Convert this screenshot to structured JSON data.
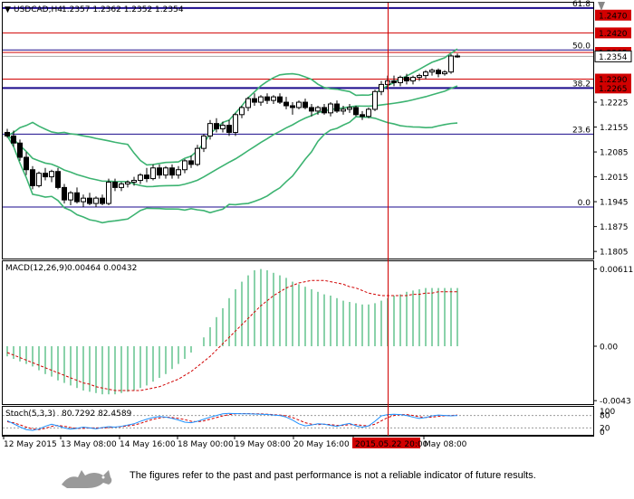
{
  "header": {
    "symbol_label": "USDCAD,H4",
    "ohlc": "1.2357 1.2362 1.2352 1.2354"
  },
  "colors": {
    "fibo_line": "#1a0a8c",
    "level_red": "#d10000",
    "bands": "#3cb371",
    "macd_hist": "#3cb371",
    "macd_signal": "#d10000",
    "stoch_main": "#1e90ff",
    "stoch_signal": "#d10000",
    "candle": "#000000"
  },
  "chart_data": [
    {
      "type": "candlestick",
      "title": "USDCAD,H4",
      "ylim": [
        1.1785,
        1.2505
      ],
      "price_ticks": [
        "1.2470",
        "1.2420",
        "1.2365",
        "1.2354",
        "1.2290",
        "1.2265",
        "1.2225",
        "1.2155",
        "1.2085",
        "1.2015",
        "1.1945",
        "1.1875",
        "1.1805"
      ],
      "highlighted_ticks": [
        "1.2470",
        "1.2420",
        "1.2365",
        "1.2290",
        "1.2265"
      ],
      "fibo_levels": [
        {
          "label": "61.8",
          "price": 1.249
        },
        {
          "label": "50.0",
          "price": 1.2372
        },
        {
          "label": "38.2",
          "price": 1.2265
        },
        {
          "label": "23.6",
          "price": 1.2135
        },
        {
          "label": "0.0",
          "price": 1.193
        }
      ],
      "horizontal_levels": [
        1.242,
        1.2365,
        1.229
      ],
      "current_price": 1.2354,
      "vertical_marker_label": "2015.05.22 20:00",
      "x_ticks": [
        "12 May 2015",
        "13 May 08:00",
        "14 May 16:00",
        "18 May 00:00",
        "19 May 08:00",
        "20 May 16:00",
        "2015.05.22 20:00",
        "May 08:00"
      ],
      "candles": [
        [
          1.214,
          1.215,
          1.2125,
          1.213
        ],
        [
          1.213,
          1.2145,
          1.21,
          1.211
        ],
        [
          1.211,
          1.212,
          1.206,
          1.207
        ],
        [
          1.207,
          1.2085,
          1.202,
          1.2035
        ],
        [
          1.2035,
          1.2045,
          1.198,
          1.199
        ],
        [
          1.199,
          1.203,
          1.1985,
          1.2025
        ],
        [
          1.2025,
          1.204,
          1.2005,
          1.2015
        ],
        [
          1.2015,
          1.2035,
          1.2,
          1.203
        ],
        [
          1.203,
          1.204,
          1.198,
          1.1985
        ],
        [
          1.1985,
          1.1995,
          1.194,
          1.195
        ],
        [
          1.195,
          1.1975,
          1.1935,
          1.197
        ],
        [
          1.197,
          1.1985,
          1.194,
          1.1945
        ],
        [
          1.1945,
          1.1965,
          1.193,
          1.1955
        ],
        [
          1.1955,
          1.197,
          1.1935,
          1.194
        ],
        [
          1.194,
          1.196,
          1.193,
          1.1955
        ],
        [
          1.1955,
          1.1965,
          1.1935,
          1.194
        ],
        [
          1.194,
          1.201,
          1.1935,
          1.2
        ],
        [
          1.2,
          1.201,
          1.1975,
          1.1985
        ],
        [
          1.1985,
          1.2,
          1.1975,
          1.1995
        ],
        [
          1.1995,
          1.2005,
          1.1985,
          1.2
        ],
        [
          1.2,
          1.2015,
          1.199,
          1.2005
        ],
        [
          1.2005,
          1.2025,
          1.1995,
          1.202
        ],
        [
          1.202,
          1.204,
          1.2,
          1.201
        ],
        [
          1.201,
          1.205,
          1.2005,
          1.204
        ],
        [
          1.204,
          1.205,
          1.201,
          1.202
        ],
        [
          1.202,
          1.2045,
          1.201,
          1.204
        ],
        [
          1.204,
          1.205,
          1.201,
          1.202
        ],
        [
          1.202,
          1.2045,
          1.201,
          1.2035
        ],
        [
          1.2035,
          1.2065,
          1.2025,
          1.206
        ],
        [
          1.206,
          1.2075,
          1.204,
          1.205
        ],
        [
          1.205,
          1.2105,
          1.2045,
          1.2095
        ],
        [
          1.2095,
          1.2135,
          1.2085,
          1.213
        ],
        [
          1.213,
          1.2175,
          1.212,
          1.2165
        ],
        [
          1.2165,
          1.218,
          1.214,
          1.215
        ],
        [
          1.215,
          1.217,
          1.214,
          1.216
        ],
        [
          1.216,
          1.2175,
          1.213,
          1.214
        ],
        [
          1.214,
          1.2195,
          1.213,
          1.219
        ],
        [
          1.219,
          1.2215,
          1.218,
          1.221
        ],
        [
          1.221,
          1.224,
          1.22,
          1.2235
        ],
        [
          1.2235,
          1.225,
          1.2215,
          1.2225
        ],
        [
          1.2225,
          1.2245,
          1.2215,
          1.224
        ],
        [
          1.224,
          1.225,
          1.222,
          1.223
        ],
        [
          1.223,
          1.2245,
          1.222,
          1.224
        ],
        [
          1.224,
          1.225,
          1.222,
          1.2225
        ],
        [
          1.2225,
          1.224,
          1.2205,
          1.2215
        ],
        [
          1.2215,
          1.2225,
          1.219,
          1.221
        ],
        [
          1.221,
          1.223,
          1.2205,
          1.2225
        ],
        [
          1.2225,
          1.2235,
          1.2205,
          1.221
        ],
        [
          1.221,
          1.222,
          1.2185,
          1.22
        ],
        [
          1.22,
          1.2215,
          1.219,
          1.221
        ],
        [
          1.221,
          1.222,
          1.219,
          1.2195
        ],
        [
          1.2195,
          1.2225,
          1.2185,
          1.222
        ],
        [
          1.222,
          1.223,
          1.2195,
          1.22
        ],
        [
          1.22,
          1.2215,
          1.219,
          1.2205
        ],
        [
          1.2205,
          1.222,
          1.2195,
          1.221
        ],
        [
          1.221,
          1.2215,
          1.2185,
          1.219
        ],
        [
          1.219,
          1.22,
          1.2175,
          1.2185
        ],
        [
          1.2185,
          1.221,
          1.218,
          1.2205
        ],
        [
          1.2205,
          1.226,
          1.22,
          1.2255
        ],
        [
          1.2255,
          1.2285,
          1.2245,
          1.2275
        ],
        [
          1.2275,
          1.23,
          1.226,
          1.2285
        ],
        [
          1.2285,
          1.23,
          1.227,
          1.228
        ],
        [
          1.228,
          1.23,
          1.227,
          1.2295
        ],
        [
          1.2295,
          1.2305,
          1.2275,
          1.2285
        ],
        [
          1.2285,
          1.23,
          1.2275,
          1.2295
        ],
        [
          1.2295,
          1.2305,
          1.2285,
          1.23
        ],
        [
          1.23,
          1.2315,
          1.229,
          1.231
        ],
        [
          1.231,
          1.232,
          1.23,
          1.2315
        ],
        [
          1.2315,
          1.232,
          1.2295,
          1.2305
        ],
        [
          1.2305,
          1.2315,
          1.23,
          1.231
        ],
        [
          1.231,
          1.236,
          1.2305,
          1.2355
        ],
        [
          1.2355,
          1.2362,
          1.235,
          1.2354
        ]
      ]
    },
    {
      "type": "bar",
      "title": "MACD(12,26,9)",
      "values_label": "0.00464 0.00432",
      "y_ticks": [
        "0.00611",
        "0.00",
        "-0.0043"
      ],
      "ylim": [
        -0.0045,
        0.0065
      ],
      "histogram": [
        -0.0008,
        -0.001,
        -0.0012,
        -0.0014,
        -0.0016,
        -0.0019,
        -0.0022,
        -0.0024,
        -0.0027,
        -0.0029,
        -0.0031,
        -0.0033,
        -0.0035,
        -0.0036,
        -0.0037,
        -0.0038,
        -0.0038,
        -0.0038,
        -0.0037,
        -0.0036,
        -0.0035,
        -0.0033,
        -0.0031,
        -0.0028,
        -0.0025,
        -0.0022,
        -0.0018,
        -0.0014,
        -0.001,
        -0.0005,
        0.0,
        0.0007,
        0.0015,
        0.0023,
        0.003,
        0.0038,
        0.0045,
        0.0051,
        0.0056,
        0.006,
        0.0061,
        0.006,
        0.0058,
        0.0056,
        0.0054,
        0.0051,
        0.0049,
        0.0047,
        0.0045,
        0.0043,
        0.0041,
        0.004,
        0.0038,
        0.0036,
        0.0035,
        0.0034,
        0.0033,
        0.0033,
        0.0034,
        0.0036,
        0.0038,
        0.004,
        0.0041,
        0.0043,
        0.0044,
        0.0045,
        0.0046,
        0.0046,
        0.0046,
        0.0046,
        0.0046,
        0.0046
      ],
      "signal": [
        -0.0005,
        -0.0007,
        -0.0009,
        -0.0011,
        -0.0013,
        -0.0015,
        -0.0017,
        -0.0019,
        -0.0021,
        -0.0023,
        -0.0025,
        -0.0027,
        -0.0029,
        -0.003,
        -0.0032,
        -0.0033,
        -0.0034,
        -0.0035,
        -0.0035,
        -0.0035,
        -0.0035,
        -0.0035,
        -0.0034,
        -0.0033,
        -0.0032,
        -0.003,
        -0.0028,
        -0.0026,
        -0.0023,
        -0.002,
        -0.0016,
        -0.0012,
        -0.0008,
        -0.0003,
        0.0002,
        0.0007,
        0.0012,
        0.0017,
        0.0022,
        0.0027,
        0.0032,
        0.0036,
        0.004,
        0.0043,
        0.0046,
        0.0048,
        0.005,
        0.0051,
        0.0052,
        0.0052,
        0.0052,
        0.0051,
        0.005,
        0.0049,
        0.0047,
        0.0046,
        0.0044,
        0.0042,
        0.0041,
        0.004,
        0.004,
        0.004,
        0.004,
        0.004,
        0.0041,
        0.0041,
        0.0042,
        0.0042,
        0.0043,
        0.0043,
        0.0043,
        0.0043
      ]
    },
    {
      "type": "line",
      "title": "Stoch(5,3,3)",
      "values_label": "80.7292 82.4589",
      "y_ticks": [
        "100",
        "80",
        "20",
        "0"
      ],
      "ylim": [
        0,
        100
      ],
      "series": [
        {
          "values": [
            55,
            40,
            25,
            12,
            8,
            15,
            28,
            38,
            30,
            20,
            14,
            18,
            24,
            20,
            16,
            22,
            26,
            24,
            28,
            34,
            40,
            52,
            62,
            70,
            75,
            72,
            66,
            58,
            48,
            45,
            52,
            62,
            72,
            80,
            88,
            90,
            89,
            88,
            88,
            87,
            86,
            85,
            82,
            80,
            72,
            58,
            40,
            30,
            34,
            40,
            38,
            32,
            28,
            36,
            42,
            30,
            24,
            30,
            52,
            78,
            84,
            86,
            84,
            80,
            72,
            66,
            70,
            78,
            82,
            80,
            78,
            80
          ]
        },
        {
          "values": [
            50,
            45,
            35,
            24,
            15,
            12,
            18,
            28,
            32,
            28,
            22,
            18,
            18,
            20,
            20,
            20,
            22,
            24,
            26,
            30,
            34,
            42,
            52,
            62,
            68,
            72,
            70,
            66,
            60,
            52,
            50,
            54,
            62,
            70,
            78,
            84,
            88,
            89,
            89,
            88,
            88,
            86,
            84,
            82,
            78,
            70,
            58,
            45,
            38,
            36,
            38,
            36,
            32,
            32,
            36,
            36,
            32,
            30,
            38,
            54,
            70,
            80,
            84,
            84,
            80,
            74,
            70,
            72,
            76,
            79,
            80,
            82
          ]
        }
      ]
    }
  ],
  "footer": {
    "disclaimer": "The figures refer to the past and past performance is not a reliable indicator of future results."
  }
}
